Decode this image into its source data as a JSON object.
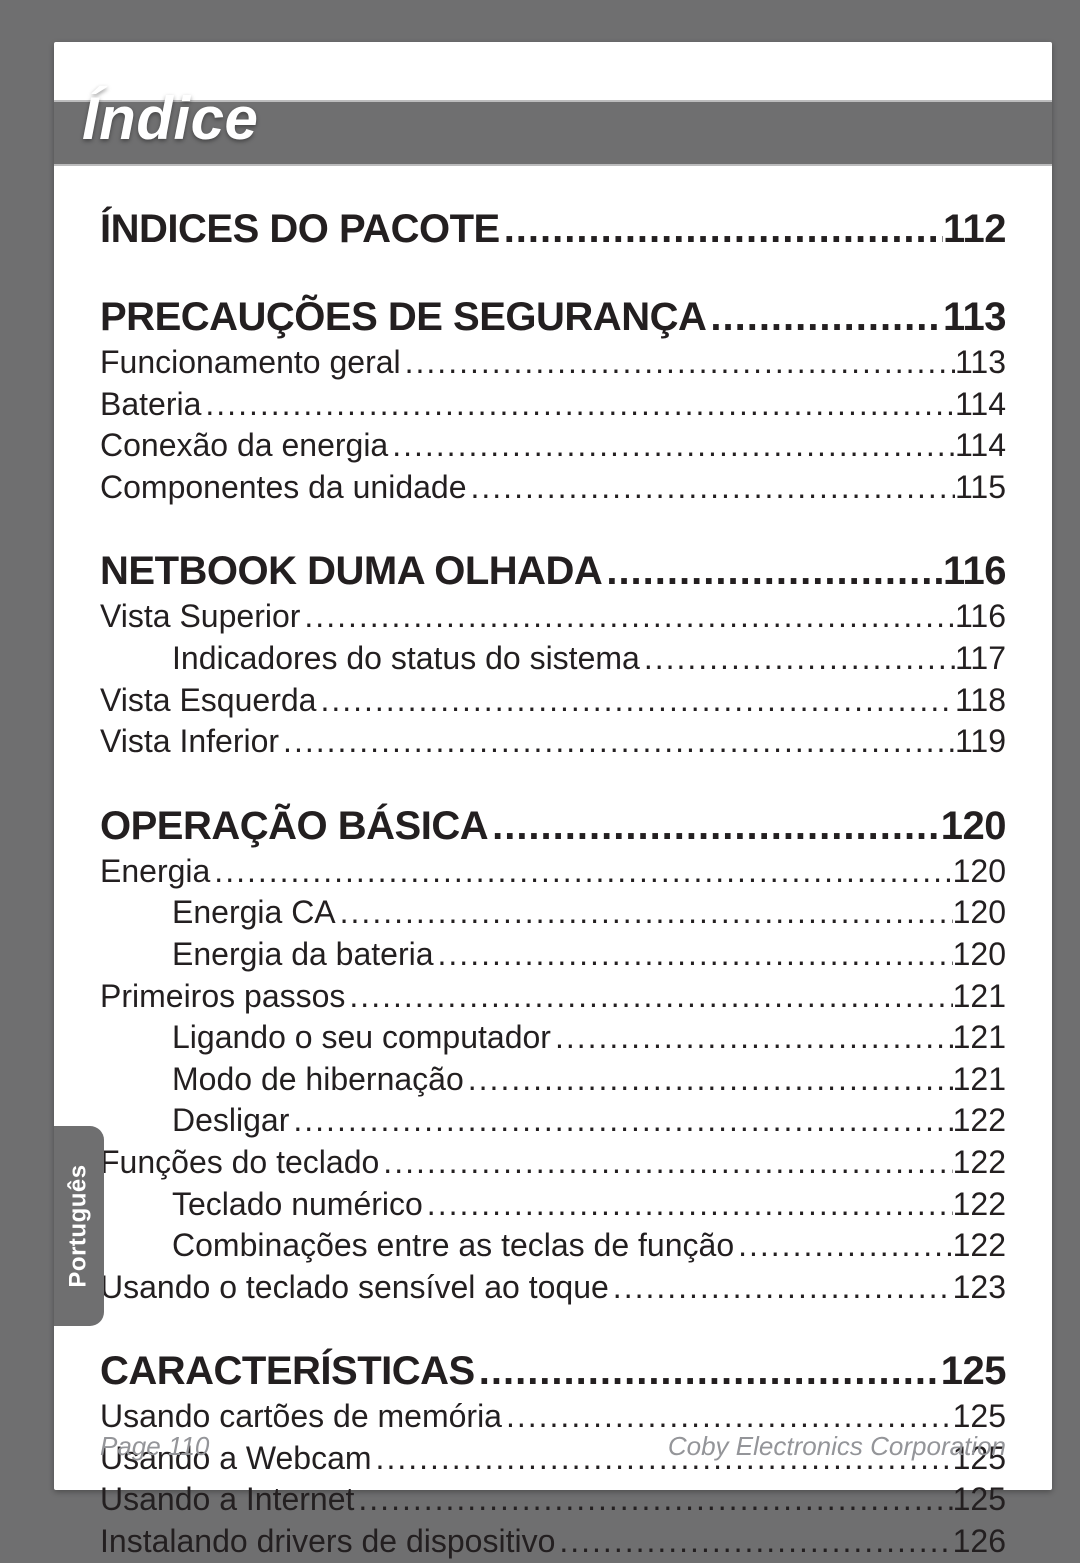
{
  "header": {
    "title": "Índice"
  },
  "side_tab": {
    "label": "Português"
  },
  "footer": {
    "left": "Page 110",
    "right": "Coby Electronics Corporation"
  },
  "colors": {
    "page_bg": "#ffffff",
    "outer_bg": "#6f6f70",
    "band_bg": "#6f6f70",
    "band_border": "#bcbcbd",
    "text": "#231f20",
    "footer_text": "#949599",
    "tab_bg": "#6f6f70",
    "tab_text": "#ffffff"
  },
  "toc": {
    "sections": [
      {
        "heading": {
          "label": "ÍNDICES DO PACOTE",
          "page": "112"
        },
        "items": []
      },
      {
        "heading": {
          "label": "PRECAUÇÕES DE SEGURANÇA",
          "page": "113"
        },
        "items": [
          {
            "level": 1,
            "label": "Funcionamento geral",
            "page": "113"
          },
          {
            "level": 1,
            "label": "Bateria",
            "page": "114"
          },
          {
            "level": 1,
            "label": "Conexão da energia",
            "page": "114"
          },
          {
            "level": 1,
            "label": "Componentes da unidade",
            "page": "115"
          }
        ]
      },
      {
        "heading": {
          "label": "NETBOOK DUMA OLHADA",
          "page": "116"
        },
        "items": [
          {
            "level": 1,
            "label": "Vista Superior",
            "page": "116"
          },
          {
            "level": 2,
            "label": "Indicadores do status do sistema",
            "page": "117"
          },
          {
            "level": 1,
            "label": "Vista Esquerda",
            "page": "118"
          },
          {
            "level": 1,
            "label": "Vista Inferior",
            "page": "119"
          }
        ]
      },
      {
        "heading": {
          "label": "OPERAÇÃO BÁSICA",
          "page": "120"
        },
        "items": [
          {
            "level": 1,
            "label": "Energia",
            "page": "120"
          },
          {
            "level": 2,
            "label": "Energia CA",
            "page": "120"
          },
          {
            "level": 2,
            "label": "Energia da bateria",
            "page": "120"
          },
          {
            "level": 1,
            "label": "Primeiros passos",
            "page": "121"
          },
          {
            "level": 2,
            "label": "Ligando o seu computador",
            "page": "121"
          },
          {
            "level": 2,
            "label": "Modo de hibernação",
            "page": "121"
          },
          {
            "level": 2,
            "label": "Desligar",
            "page": "122"
          },
          {
            "level": 1,
            "label": "Funções do teclado",
            "page": "122"
          },
          {
            "level": 2,
            "label": "Teclado numérico",
            "page": "122"
          },
          {
            "level": 2,
            "label": "Combinações entre as teclas de função",
            "page": "122"
          },
          {
            "level": 1,
            "label": "Usando o teclado sensível ao toque",
            "page": "123"
          }
        ]
      },
      {
        "heading": {
          "label": "CARACTERÍSTICAS",
          "page": "125"
        },
        "items": [
          {
            "level": 1,
            "label": "Usando cartões de memória",
            "page": "125"
          },
          {
            "level": 1,
            "label": "Usando a Webcam",
            "page": "125"
          },
          {
            "level": 1,
            "label": "Usando a Internet",
            "page": "125"
          },
          {
            "level": 1,
            "label": "Instalando drivers de dispositivo",
            "page": "126"
          }
        ]
      }
    ]
  }
}
